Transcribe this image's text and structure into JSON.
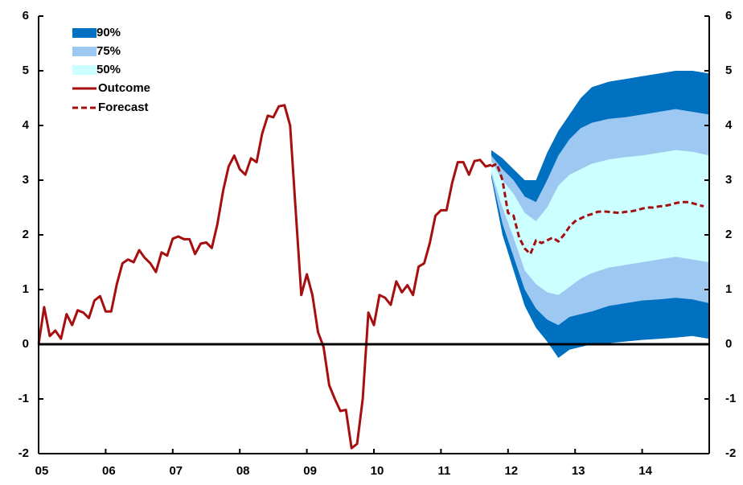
{
  "chart_data": {
    "type": "fan",
    "xlim": [
      2005,
      2015
    ],
    "xticks": [
      {
        "value": 2005,
        "label": "05"
      },
      {
        "value": 2006,
        "label": "06"
      },
      {
        "value": 2007,
        "label": "07"
      },
      {
        "value": 2008,
        "label": "08"
      },
      {
        "value": 2009,
        "label": "09"
      },
      {
        "value": 2010,
        "label": "10"
      },
      {
        "value": 2011,
        "label": "11"
      },
      {
        "value": 2012,
        "label": "12"
      },
      {
        "value": 2013,
        "label": "13"
      },
      {
        "value": 2014,
        "label": "14"
      }
    ],
    "ylim": [
      -2,
      6
    ],
    "yticks": [
      -2,
      -1,
      0,
      1,
      2,
      3,
      4,
      5,
      6
    ],
    "y2lim": [
      -2,
      6
    ],
    "y2ticks": [
      -2,
      -1,
      0,
      1,
      2,
      3,
      4,
      5,
      6
    ],
    "bands": [
      {
        "name": "90%",
        "color": "#0070c0",
        "x": [
          2011.75,
          2011.917,
          2012.083,
          2012.25,
          2012.417,
          2012.583,
          2012.75,
          2012.917,
          2013.083,
          2013.25,
          2013.5,
          2013.75,
          2014.0,
          2014.25,
          2014.5,
          2014.75,
          2015.0
        ],
        "upper": [
          3.55,
          3.4,
          3.2,
          3.0,
          3.0,
          3.5,
          3.9,
          4.2,
          4.5,
          4.7,
          4.8,
          4.85,
          4.9,
          4.95,
          5.0,
          5.0,
          4.95
        ],
        "lower": [
          3.05,
          2.0,
          1.35,
          0.7,
          0.3,
          0.05,
          -0.25,
          -0.1,
          -0.05,
          0.0,
          0.02,
          0.05,
          0.08,
          0.1,
          0.12,
          0.15,
          0.1
        ]
      },
      {
        "name": "75%",
        "color": "#9dc8f2",
        "x": [
          2011.75,
          2011.917,
          2012.083,
          2012.25,
          2012.417,
          2012.583,
          2012.75,
          2012.917,
          2013.083,
          2013.25,
          2013.5,
          2013.75,
          2014.0,
          2014.25,
          2014.5,
          2014.75,
          2015.0
        ],
        "upper": [
          3.45,
          3.2,
          3.0,
          2.7,
          2.6,
          3.0,
          3.45,
          3.75,
          3.95,
          4.05,
          4.12,
          4.15,
          4.2,
          4.25,
          4.3,
          4.25,
          4.2
        ],
        "lower": [
          3.1,
          2.2,
          1.6,
          1.0,
          0.65,
          0.45,
          0.35,
          0.5,
          0.55,
          0.6,
          0.7,
          0.75,
          0.8,
          0.82,
          0.85,
          0.82,
          0.75
        ]
      },
      {
        "name": "50%",
        "color": "#ccffff",
        "x": [
          2011.75,
          2011.917,
          2012.083,
          2012.25,
          2012.417,
          2012.583,
          2012.75,
          2012.917,
          2013.083,
          2013.25,
          2013.5,
          2013.75,
          2014.0,
          2014.25,
          2014.5,
          2014.75,
          2015.0
        ],
        "upper": [
          3.35,
          3.0,
          2.75,
          2.4,
          2.25,
          2.5,
          2.9,
          3.1,
          3.2,
          3.3,
          3.38,
          3.42,
          3.45,
          3.5,
          3.55,
          3.52,
          3.45
        ],
        "lower": [
          3.15,
          2.5,
          1.95,
          1.35,
          1.1,
          0.95,
          0.9,
          1.05,
          1.2,
          1.3,
          1.4,
          1.45,
          1.5,
          1.55,
          1.6,
          1.55,
          1.5
        ]
      }
    ],
    "series": [
      {
        "name": "Outcome",
        "color": "#a50f0f",
        "dashed": false,
        "x": [
          2005.0,
          2005.083,
          2005.167,
          2005.25,
          2005.333,
          2005.417,
          2005.5,
          2005.583,
          2005.667,
          2005.75,
          2005.833,
          2005.917,
          2006.0,
          2006.083,
          2006.167,
          2006.25,
          2006.333,
          2006.417,
          2006.5,
          2006.583,
          2006.667,
          2006.75,
          2006.833,
          2006.917,
          2007.0,
          2007.083,
          2007.167,
          2007.25,
          2007.333,
          2007.417,
          2007.5,
          2007.583,
          2007.667,
          2007.75,
          2007.833,
          2007.917,
          2008.0,
          2008.083,
          2008.167,
          2008.25,
          2008.333,
          2008.417,
          2008.5,
          2008.583,
          2008.667,
          2008.75,
          2008.833,
          2008.917,
          2009.0,
          2009.083,
          2009.167,
          2009.25,
          2009.333,
          2009.417,
          2009.5,
          2009.583,
          2009.667,
          2009.75,
          2009.833,
          2009.917,
          2010.0,
          2010.083,
          2010.167,
          2010.25,
          2010.333,
          2010.417,
          2010.5,
          2010.583,
          2010.667,
          2010.75,
          2010.833,
          2010.917,
          2011.0,
          2011.083,
          2011.167,
          2011.25,
          2011.333,
          2011.417,
          2011.5,
          2011.583,
          2011.667,
          2011.75
        ],
        "values": [
          0,
          0.68,
          0.15,
          0.25,
          0.1,
          0.55,
          0.35,
          0.62,
          0.58,
          0.48,
          0.8,
          0.88,
          0.6,
          0.6,
          1.1,
          1.48,
          1.55,
          1.5,
          1.72,
          1.58,
          1.48,
          1.32,
          1.68,
          1.62,
          1.93,
          1.97,
          1.92,
          1.92,
          1.65,
          1.84,
          1.86,
          1.76,
          2.2,
          2.8,
          3.25,
          3.45,
          3.2,
          3.1,
          3.4,
          3.33,
          3.85,
          4.18,
          4.15,
          4.35,
          4.37,
          4.0,
          2.45,
          0.9,
          1.28,
          0.9,
          0.22,
          -0.05,
          -0.75,
          -1.0,
          -1.22,
          -1.2,
          -1.9,
          -1.82,
          -1.0,
          0.58,
          0.35,
          0.9,
          0.85,
          0.72,
          1.15,
          0.95,
          1.08,
          0.9,
          1.42,
          1.48,
          1.85,
          2.35,
          2.45,
          2.45,
          2.95,
          3.33,
          3.33,
          3.1,
          3.35,
          3.37,
          3.25,
          3.28
        ]
      },
      {
        "name": "Forecast",
        "color": "#a50f0f",
        "dashed": true,
        "x": [
          2011.75,
          2011.833,
          2011.917,
          2012.0,
          2012.083,
          2012.167,
          2012.25,
          2012.333,
          2012.417,
          2012.5,
          2012.583,
          2012.667,
          2012.75,
          2012.833,
          2012.917,
          2013.0,
          2013.083,
          2013.167,
          2013.25,
          2013.333,
          2013.417,
          2013.5,
          2013.583,
          2013.667,
          2013.75,
          2013.833,
          2013.917,
          2014.0,
          2014.083,
          2014.167,
          2014.25,
          2014.333,
          2014.417,
          2014.5,
          2014.583,
          2014.667,
          2014.75,
          2014.833,
          2014.917
        ],
        "values": [
          3.25,
          3.3,
          3.0,
          2.4,
          2.35,
          1.95,
          1.75,
          1.65,
          1.9,
          1.85,
          1.9,
          1.95,
          1.88,
          2.0,
          2.15,
          2.25,
          2.3,
          2.35,
          2.38,
          2.42,
          2.43,
          2.42,
          2.41,
          2.4,
          2.42,
          2.43,
          2.45,
          2.48,
          2.5,
          2.5,
          2.52,
          2.53,
          2.55,
          2.58,
          2.6,
          2.6,
          2.58,
          2.55,
          2.52
        ]
      }
    ]
  }
}
